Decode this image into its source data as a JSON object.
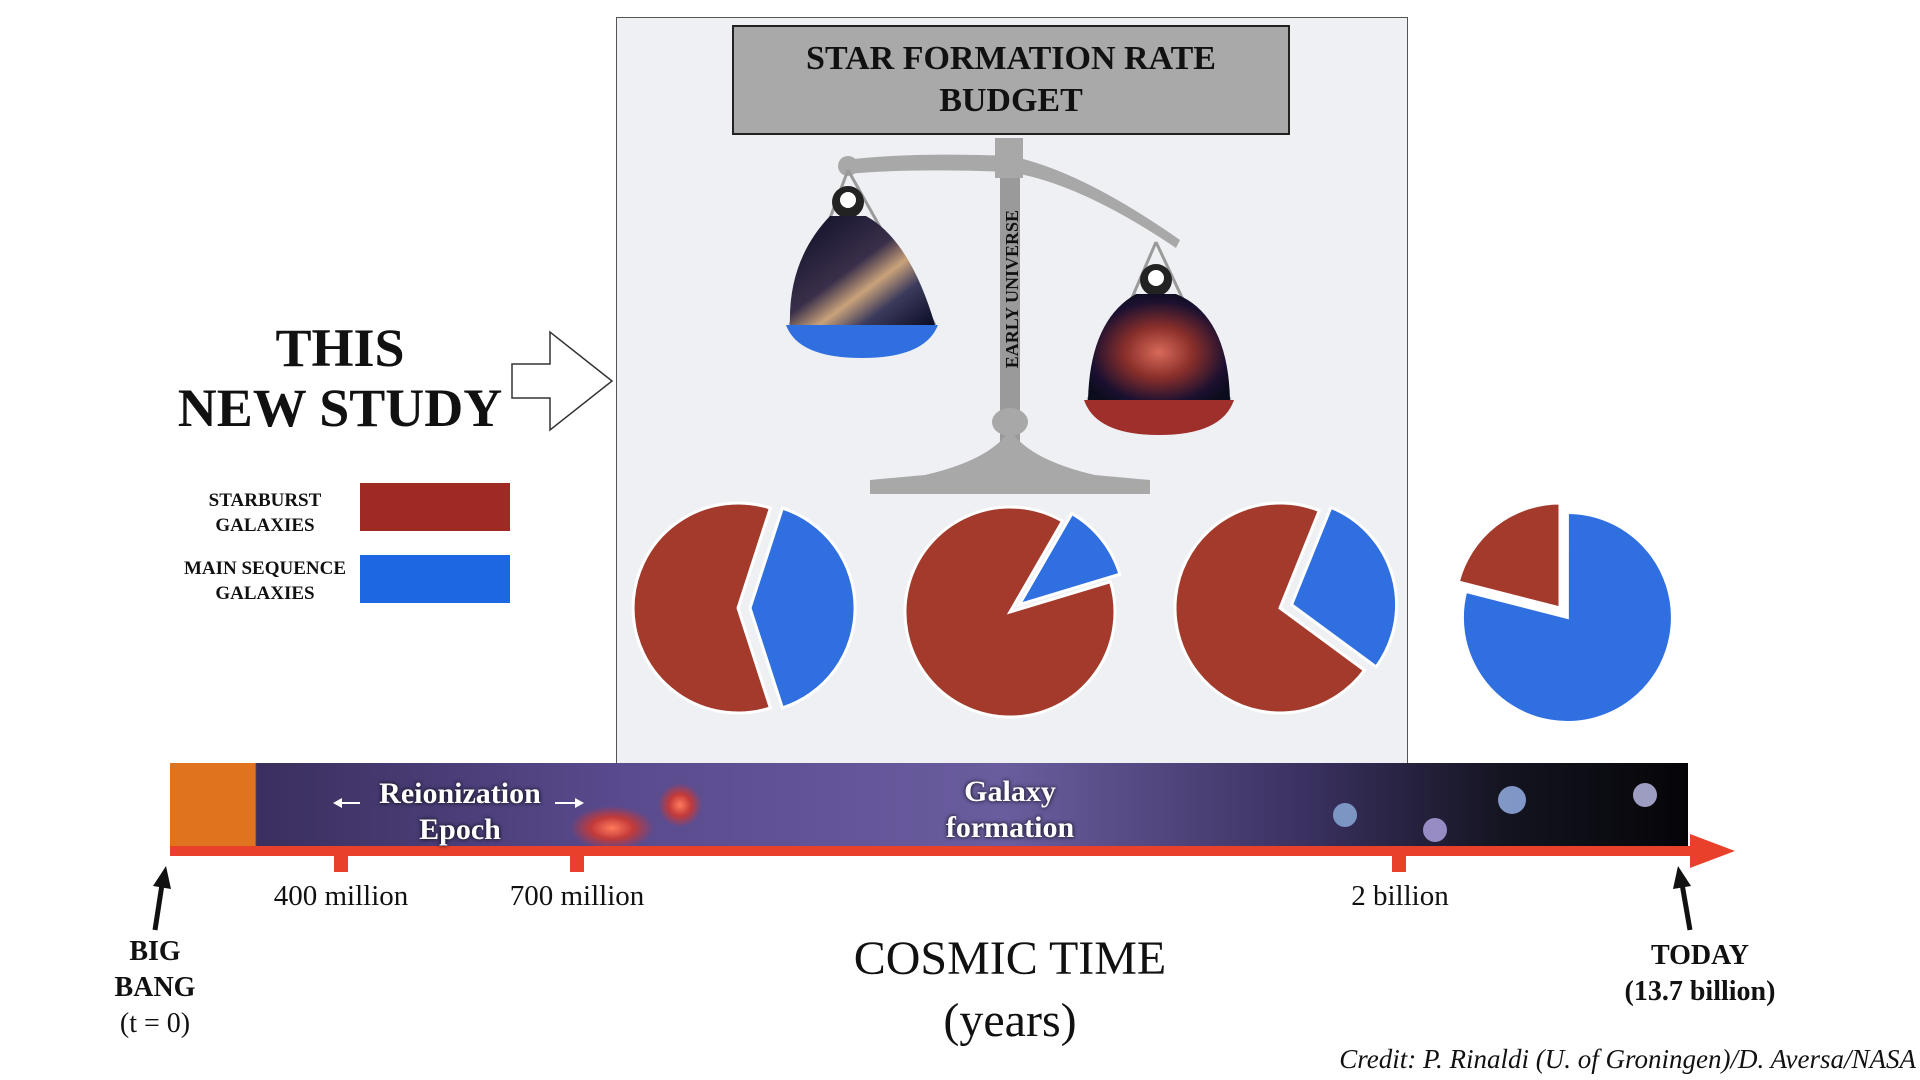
{
  "headline": {
    "line1": "THIS",
    "line2": "NEW STUDY"
  },
  "panel_title": {
    "line1": "STAR FORMATION RATE",
    "line2": "BUDGET"
  },
  "scale_label": "EARLY UNIVERSE",
  "legend": {
    "items": [
      {
        "line1": "STARBURST",
        "line2": "GALAXIES",
        "color": "#9e2a24"
      },
      {
        "line1": "MAIN SEQUENCE",
        "line2": "GALAXIES",
        "color": "#1d67e2"
      }
    ]
  },
  "colors": {
    "starburst": "#a33a2c",
    "main_sequence": "#2f6fe0",
    "timeline_arrow": "#e8402a"
  },
  "pies": [
    {
      "starburst_fraction": 0.6,
      "main_sequence_fraction": 0.4
    },
    {
      "starburst_fraction": 0.88,
      "main_sequence_fraction": 0.12
    },
    {
      "starburst_fraction": 0.71,
      "main_sequence_fraction": 0.29
    },
    {
      "starburst_fraction": 0.21,
      "main_sequence_fraction": 0.79
    }
  ],
  "timeline": {
    "band_labels": {
      "reionization_line1": "Reionization",
      "reionization_line2": "Epoch",
      "galaxy_line1": "Galaxy",
      "galaxy_line2": "formation"
    },
    "ticks": [
      "400 million",
      "700 million",
      "2 billion"
    ],
    "start": {
      "line1": "BIG",
      "line2": "BANG",
      "line3": "(t = 0)"
    },
    "end": {
      "line1": "TODAY",
      "line2": "(13.7 billion)"
    }
  },
  "axis_title": {
    "line1": "COSMIC TIME",
    "line2": "(years)"
  },
  "credit": "Credit: P. Rinaldi (U. of Groningen)/D. Aversa/NASA"
}
